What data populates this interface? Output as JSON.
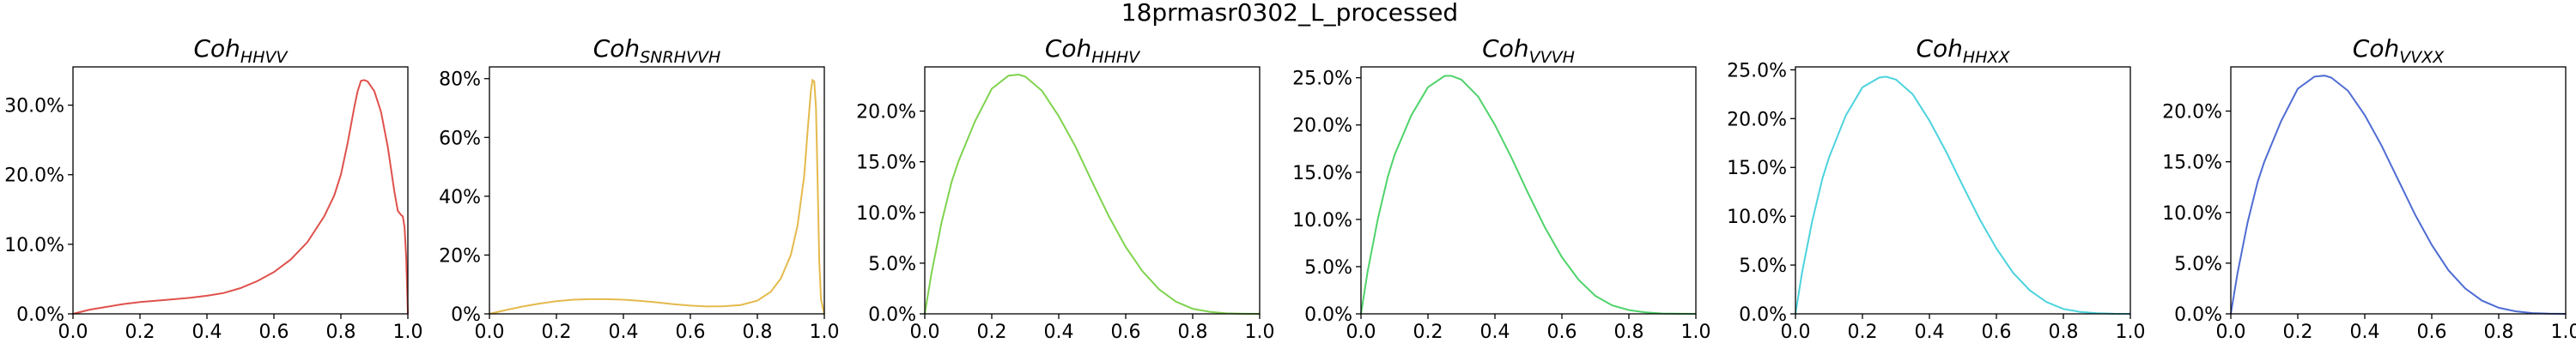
{
  "suptitle": "18prmasr0302_L_processed",
  "chart_data": [
    {
      "type": "line",
      "title": {
        "base": "Coh",
        "sub": "HHVV"
      },
      "color": "#e0514c",
      "xlim": [
        0,
        1
      ],
      "ylim": [
        0,
        0.355
      ],
      "xticks": [
        0.0,
        0.2,
        0.4,
        0.6,
        0.8,
        1.0
      ],
      "xtick_labels": [
        "0.0",
        "0.2",
        "0.4",
        "0.6",
        "0.8",
        "1.0"
      ],
      "yticks": [
        0.0,
        0.1,
        0.2,
        0.3
      ],
      "ytick_labels": [
        "0.0%",
        "10.0%",
        "20.0%",
        "30.0%"
      ],
      "series": [
        {
          "x": [
            0.0,
            0.05,
            0.1,
            0.15,
            0.2,
            0.25,
            0.3,
            0.35,
            0.4,
            0.45,
            0.5,
            0.55,
            0.6,
            0.65,
            0.7,
            0.75,
            0.78,
            0.8,
            0.82,
            0.84,
            0.85,
            0.86,
            0.87,
            0.88,
            0.9,
            0.92,
            0.94,
            0.96,
            0.97,
            0.98,
            0.985,
            0.99,
            0.995,
            1.0
          ],
          "y": [
            0.0,
            0.006,
            0.01,
            0.014,
            0.017,
            0.019,
            0.021,
            0.023,
            0.026,
            0.03,
            0.037,
            0.047,
            0.06,
            0.078,
            0.103,
            0.14,
            0.17,
            0.2,
            0.245,
            0.297,
            0.32,
            0.335,
            0.336,
            0.334,
            0.32,
            0.29,
            0.24,
            0.175,
            0.148,
            0.142,
            0.14,
            0.125,
            0.08,
            0.0
          ]
        }
      ]
    },
    {
      "type": "line",
      "title": {
        "base": "Coh",
        "sub": "SNRHVVH"
      },
      "color": "#e4ba4c",
      "xlim": [
        0,
        1
      ],
      "ylim": [
        0,
        0.84
      ],
      "xticks": [
        0.0,
        0.2,
        0.4,
        0.6,
        0.8,
        1.0
      ],
      "xtick_labels": [
        "0.0",
        "0.2",
        "0.4",
        "0.6",
        "0.8",
        "1.0"
      ],
      "yticks": [
        0.0,
        0.2,
        0.4,
        0.6,
        0.8
      ],
      "ytick_labels": [
        "0%",
        "20%",
        "40%",
        "60%",
        "80%"
      ],
      "series": [
        {
          "x": [
            0.0,
            0.05,
            0.1,
            0.15,
            0.2,
            0.25,
            0.3,
            0.35,
            0.4,
            0.45,
            0.5,
            0.55,
            0.6,
            0.65,
            0.7,
            0.75,
            0.8,
            0.84,
            0.87,
            0.9,
            0.92,
            0.94,
            0.95,
            0.96,
            0.965,
            0.97,
            0.975,
            0.98,
            0.985,
            0.99,
            1.0
          ],
          "y": [
            0.0,
            0.013,
            0.025,
            0.035,
            0.043,
            0.048,
            0.05,
            0.05,
            0.048,
            0.044,
            0.039,
            0.033,
            0.028,
            0.025,
            0.026,
            0.03,
            0.045,
            0.075,
            0.12,
            0.2,
            0.3,
            0.47,
            0.62,
            0.76,
            0.795,
            0.79,
            0.7,
            0.45,
            0.18,
            0.05,
            0.0
          ]
        }
      ]
    },
    {
      "type": "line",
      "title": {
        "base": "Coh",
        "sub": "HHHV"
      },
      "color": "#7fd34e",
      "xlim": [
        0,
        1
      ],
      "ylim": [
        0,
        0.2436
      ],
      "xticks": [
        0.0,
        0.2,
        0.4,
        0.6,
        0.8,
        1.0
      ],
      "xtick_labels": [
        "0.0",
        "0.2",
        "0.4",
        "0.6",
        "0.8",
        "1.0"
      ],
      "yticks": [
        0.0,
        0.05,
        0.1,
        0.15,
        0.2
      ],
      "ytick_labels": [
        "0.0%",
        "5.0%",
        "10.0%",
        "15.0%",
        "20.0%"
      ],
      "series": [
        {
          "x": [
            0.0,
            0.02,
            0.05,
            0.08,
            0.1,
            0.15,
            0.2,
            0.25,
            0.28,
            0.3,
            0.35,
            0.4,
            0.45,
            0.5,
            0.55,
            0.6,
            0.65,
            0.7,
            0.75,
            0.8,
            0.85,
            0.9,
            0.95,
            1.0
          ],
          "y": [
            0.0,
            0.04,
            0.09,
            0.13,
            0.15,
            0.19,
            0.222,
            0.235,
            0.236,
            0.234,
            0.22,
            0.195,
            0.165,
            0.13,
            0.096,
            0.066,
            0.042,
            0.024,
            0.012,
            0.005,
            0.002,
            0.0005,
            0.0001,
            0.0
          ]
        }
      ]
    },
    {
      "type": "line",
      "title": {
        "base": "Coh",
        "sub": "VVVH"
      },
      "color": "#4fd36b",
      "xlim": [
        0,
        1
      ],
      "ylim": [
        0,
        0.2615
      ],
      "xticks": [
        0.0,
        0.2,
        0.4,
        0.6,
        0.8,
        1.0
      ],
      "xtick_labels": [
        "0.0",
        "0.2",
        "0.4",
        "0.6",
        "0.8",
        "1.0"
      ],
      "yticks": [
        0.0,
        0.05,
        0.1,
        0.15,
        0.2,
        0.25
      ],
      "ytick_labels": [
        "0.0%",
        "5.0%",
        "10.0%",
        "15.0%",
        "20.0%",
        "25.0%"
      ],
      "series": [
        {
          "x": [
            0.0,
            0.02,
            0.05,
            0.08,
            0.1,
            0.15,
            0.2,
            0.25,
            0.27,
            0.3,
            0.35,
            0.4,
            0.45,
            0.5,
            0.55,
            0.6,
            0.65,
            0.7,
            0.75,
            0.8,
            0.85,
            0.9,
            0.95,
            1.0
          ],
          "y": [
            0.0,
            0.045,
            0.1,
            0.145,
            0.168,
            0.21,
            0.24,
            0.252,
            0.252,
            0.248,
            0.23,
            0.2,
            0.165,
            0.127,
            0.091,
            0.06,
            0.036,
            0.019,
            0.009,
            0.004,
            0.0015,
            0.0004,
            0.0001,
            0.0
          ]
        }
      ]
    },
    {
      "type": "line",
      "title": {
        "base": "Coh",
        "sub": "HHXX"
      },
      "color": "#4cd3de",
      "xlim": [
        0,
        1
      ],
      "ylim": [
        0,
        0.253
      ],
      "xticks": [
        0.0,
        0.2,
        0.4,
        0.6,
        0.8,
        1.0
      ],
      "xtick_labels": [
        "0.0",
        "0.2",
        "0.4",
        "0.6",
        "0.8",
        "1.0"
      ],
      "yticks": [
        0.0,
        0.05,
        0.1,
        0.15,
        0.2,
        0.25
      ],
      "ytick_labels": [
        "0.0%",
        "5.0%",
        "10.0%",
        "15.0%",
        "20.0%",
        "25.0%"
      ],
      "series": [
        {
          "x": [
            0.0,
            0.02,
            0.05,
            0.08,
            0.1,
            0.15,
            0.2,
            0.25,
            0.27,
            0.3,
            0.35,
            0.4,
            0.45,
            0.5,
            0.55,
            0.6,
            0.65,
            0.7,
            0.75,
            0.8,
            0.85,
            0.9,
            0.95,
            1.0
          ],
          "y": [
            0.0,
            0.043,
            0.095,
            0.138,
            0.16,
            0.203,
            0.232,
            0.242,
            0.243,
            0.24,
            0.225,
            0.198,
            0.166,
            0.131,
            0.097,
            0.067,
            0.042,
            0.024,
            0.012,
            0.005,
            0.002,
            0.0006,
            0.0001,
            0.0
          ]
        }
      ]
    },
    {
      "type": "line",
      "title": {
        "base": "Coh",
        "sub": "VVXX"
      },
      "color": "#4f6cd3",
      "xlim": [
        0,
        1
      ],
      "ylim": [
        0,
        0.2436
      ],
      "xticks": [
        0.0,
        0.2,
        0.4,
        0.6,
        0.8,
        1.0
      ],
      "xtick_labels": [
        "0.0",
        "0.2",
        "0.4",
        "0.6",
        "0.8",
        "1.0"
      ],
      "yticks": [
        0.0,
        0.05,
        0.1,
        0.15,
        0.2
      ],
      "ytick_labels": [
        "0.0%",
        "5.0%",
        "10.0%",
        "15.0%",
        "20.0%"
      ],
      "series": [
        {
          "x": [
            0.0,
            0.02,
            0.05,
            0.08,
            0.1,
            0.15,
            0.2,
            0.25,
            0.28,
            0.3,
            0.35,
            0.4,
            0.45,
            0.5,
            0.55,
            0.6,
            0.65,
            0.7,
            0.75,
            0.8,
            0.85,
            0.9,
            0.95,
            1.0
          ],
          "y": [
            0.0,
            0.04,
            0.09,
            0.13,
            0.15,
            0.19,
            0.222,
            0.234,
            0.235,
            0.233,
            0.22,
            0.196,
            0.166,
            0.132,
            0.098,
            0.068,
            0.043,
            0.025,
            0.013,
            0.006,
            0.0025,
            0.0008,
            0.0002,
            0.0
          ]
        }
      ]
    }
  ]
}
